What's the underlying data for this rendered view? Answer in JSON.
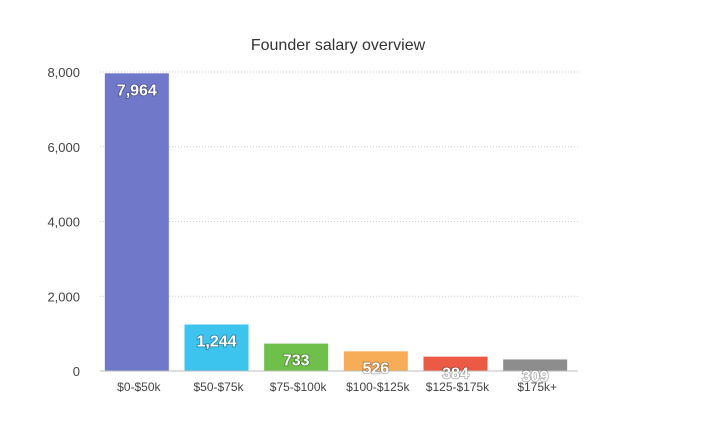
{
  "chart_data": {
    "type": "bar",
    "title": "Founder salary overview",
    "xlabel": "",
    "ylabel": "",
    "categories": [
      "$0-$50k",
      "$50-$75k",
      "$75-$100k",
      "$100-$125k",
      "$125-$175k",
      "$175k+"
    ],
    "values": [
      7964,
      1244,
      733,
      526,
      384,
      309
    ],
    "data_labels": [
      "7,964",
      "1,244",
      "733",
      "526",
      "384",
      "309"
    ],
    "bar_colors": [
      "#6f78c9",
      "#3cc3ee",
      "#6fc04a",
      "#f7ac58",
      "#ea5a45",
      "#8d8d8d"
    ],
    "ylim": [
      0,
      8000
    ],
    "yticks": [
      0,
      2000,
      4000,
      6000,
      8000
    ],
    "ytick_labels": [
      "0",
      "2,000",
      "4,000",
      "6,000",
      "8,000"
    ],
    "grid": true,
    "legend": "none"
  }
}
